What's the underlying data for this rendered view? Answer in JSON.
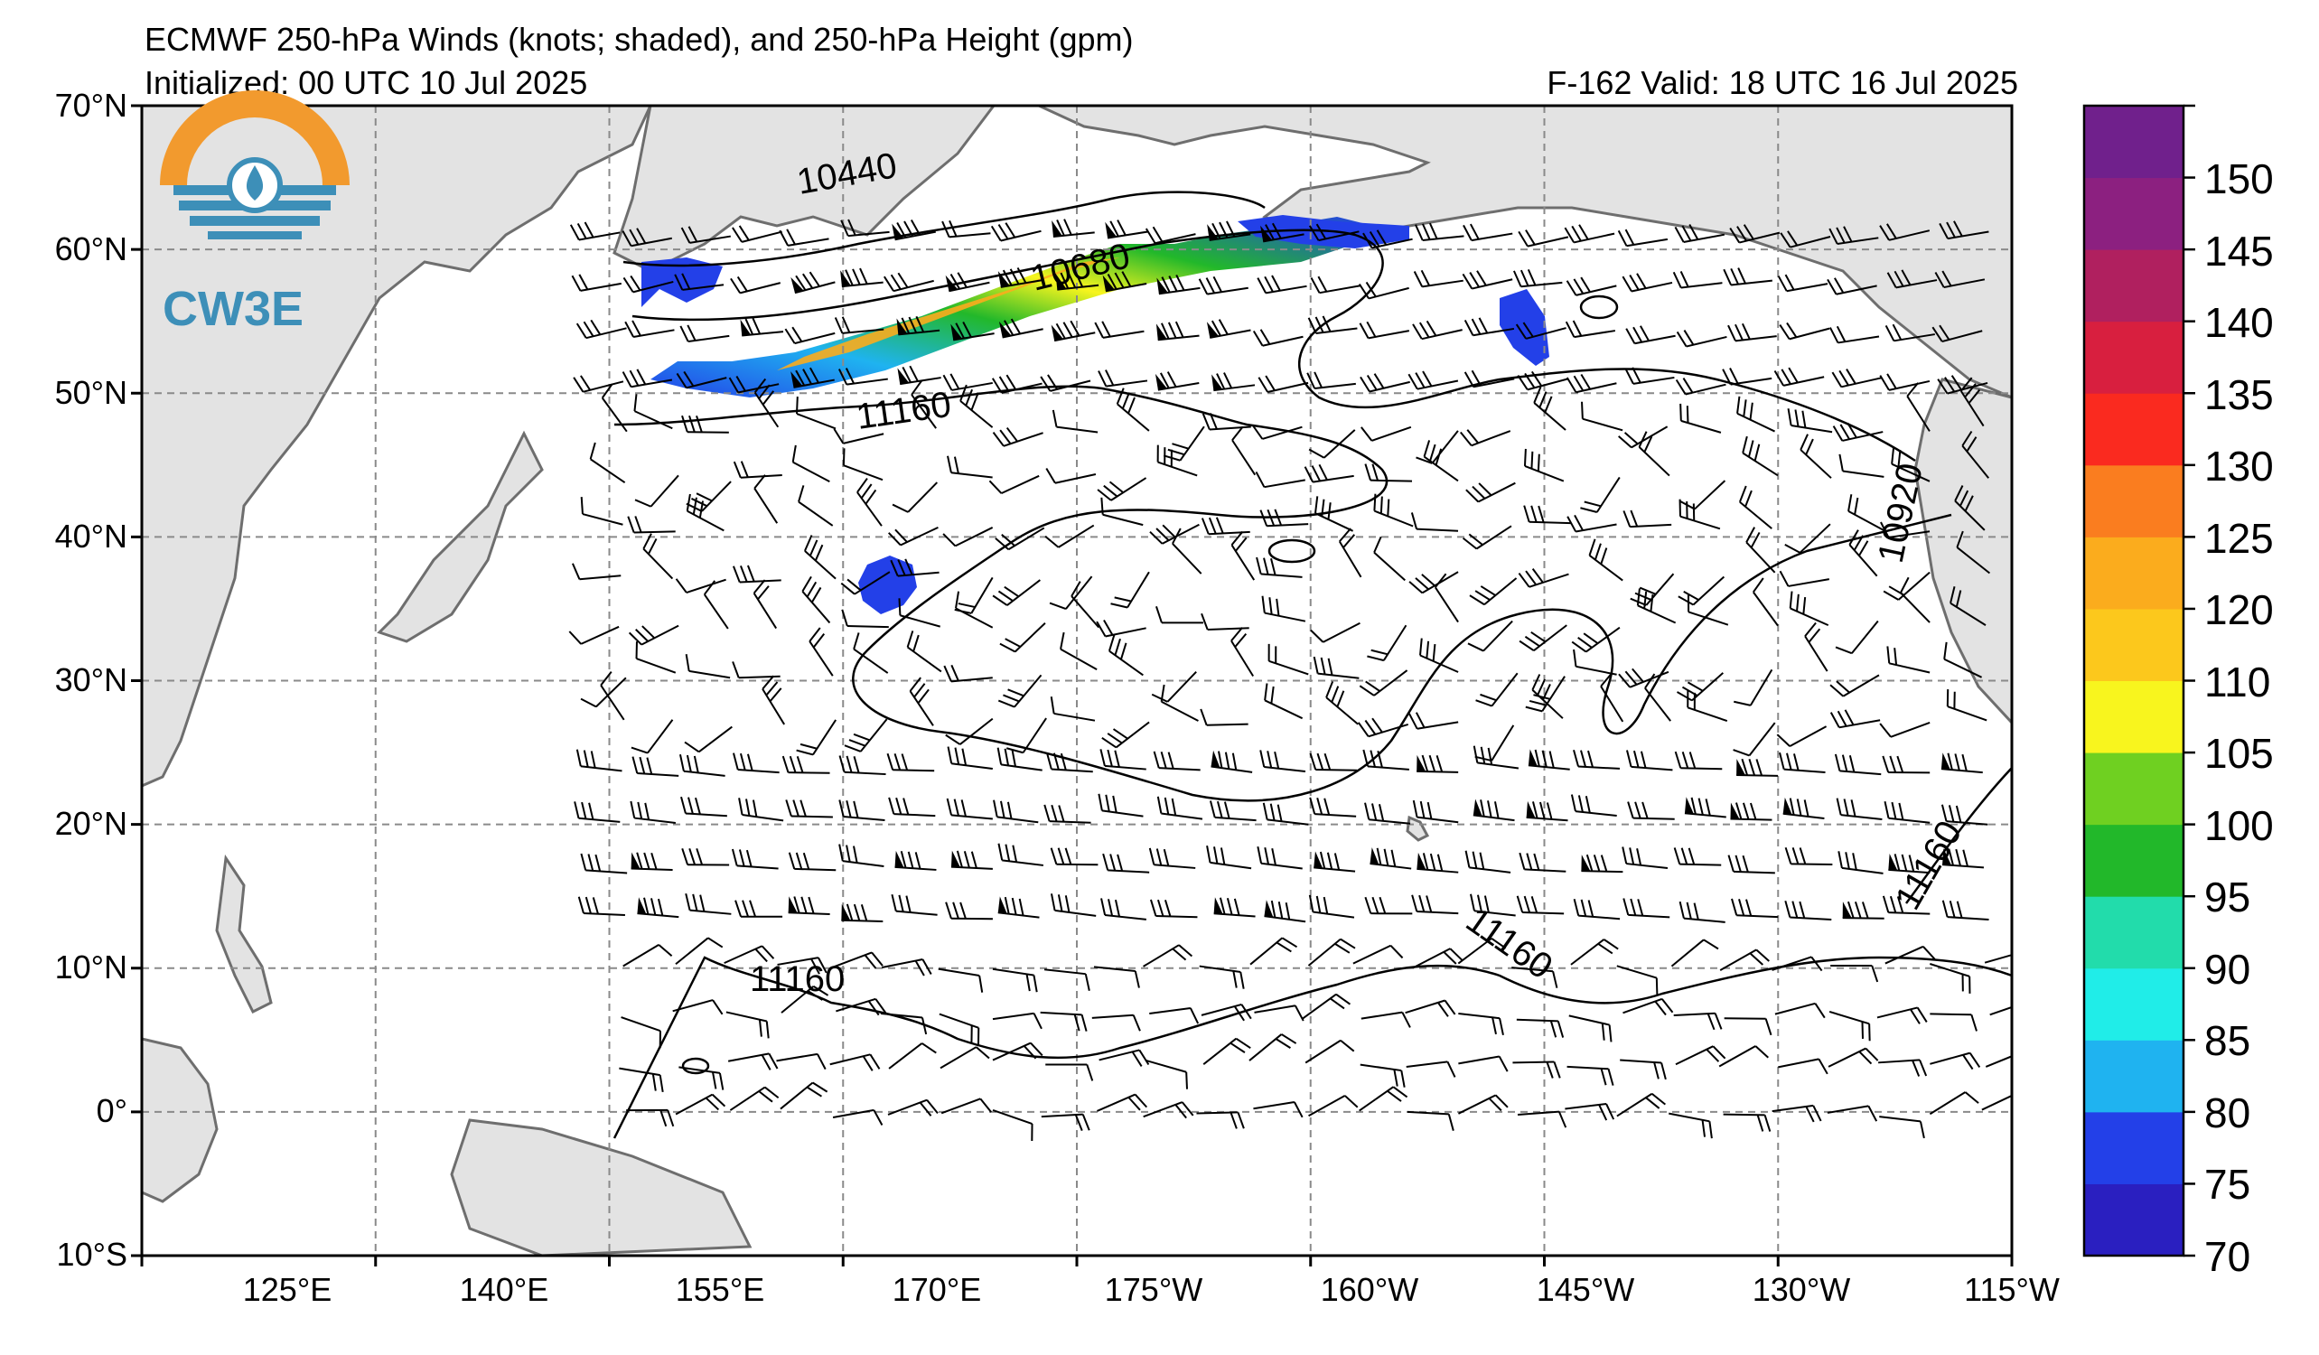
{
  "header": {
    "title": "ECMWF 250-hPa Winds (knots; shaded), and 250-hPa Height (gpm)",
    "initialized": "Initialized: 00 UTC 10 Jul 2025",
    "valid": "F-162  Valid: 18 UTC 16 Jul 2025"
  },
  "logo": {
    "text": "CW3E",
    "colors": {
      "orange": "#f29a2e",
      "blue": "#3d8fb8"
    }
  },
  "map": {
    "lat_labels": [
      "70°N",
      "60°N",
      "50°N",
      "40°N",
      "30°N",
      "20°N",
      "10°N",
      "0°",
      "10°S"
    ],
    "lon_labels": [
      "125°E",
      "140°E",
      "155°E",
      "170°E",
      "175°W",
      "160°W",
      "145°W",
      "130°W",
      "115°W"
    ],
    "contour_labels": [
      "10440",
      "10680",
      "11160",
      "10920",
      "11160",
      "11160",
      "11160"
    ]
  },
  "colorbar": {
    "ticks": [
      "150",
      "145",
      "140",
      "135",
      "130",
      "125",
      "120",
      "110",
      "105",
      "100",
      "95",
      "90",
      "85",
      "80",
      "75",
      "70"
    ],
    "colors": [
      "#2a1fc0",
      "#2340e8",
      "#1fb3f0",
      "#20ede8",
      "#22dcab",
      "#22b82a",
      "#6fd021",
      "#f8f51e",
      "#fcc81c",
      "#fbac1d",
      "#fa7d1f",
      "#fa2a1f",
      "#d81f3f",
      "#b0205f",
      "#8c2080",
      "#70208c"
    ]
  }
}
